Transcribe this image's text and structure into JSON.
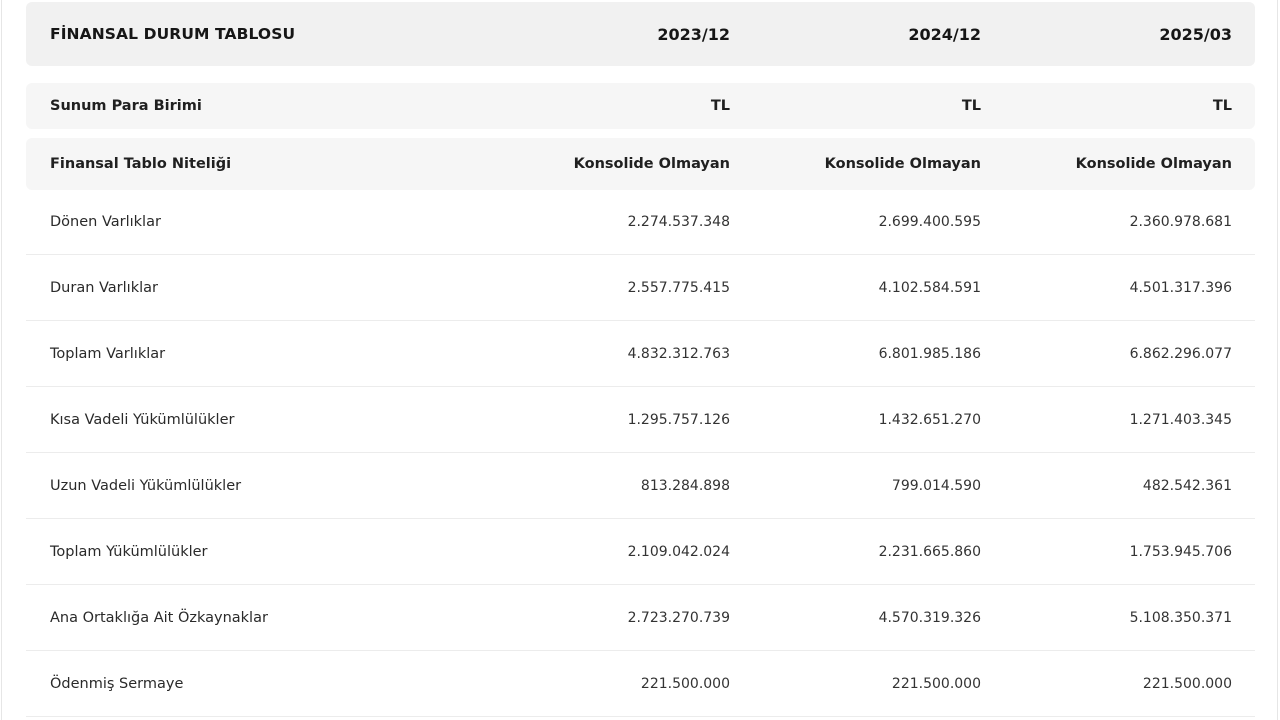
{
  "table": {
    "title": "FİNANSAL DURUM TABLOSU",
    "periods": [
      "2023/12",
      "2024/12",
      "2025/03"
    ],
    "meta_rows": [
      {
        "label": "Sunum Para Birimi",
        "values": [
          "TL",
          "TL",
          "TL"
        ]
      },
      {
        "label": "Finansal Tablo Niteliği",
        "values": [
          "Konsolide Olmayan",
          "Konsolide Olmayan",
          "Konsolide Olmayan"
        ]
      }
    ],
    "rows": [
      {
        "label": "Dönen Varlıklar",
        "values": [
          "2.274.537.348",
          "2.699.400.595",
          "2.360.978.681"
        ]
      },
      {
        "label": "Duran Varlıklar",
        "values": [
          "2.557.775.415",
          "4.102.584.591",
          "4.501.317.396"
        ]
      },
      {
        "label": "Toplam Varlıklar",
        "values": [
          "4.832.312.763",
          "6.801.985.186",
          "6.862.296.077"
        ]
      },
      {
        "label": "Kısa Vadeli Yükümlülükler",
        "values": [
          "1.295.757.126",
          "1.432.651.270",
          "1.271.403.345"
        ]
      },
      {
        "label": "Uzun Vadeli Yükümlülükler",
        "values": [
          "813.284.898",
          "799.014.590",
          "482.542.361"
        ]
      },
      {
        "label": "Toplam Yükümlülükler",
        "values": [
          "2.109.042.024",
          "2.231.665.860",
          "1.753.945.706"
        ]
      },
      {
        "label": "Ana Ortaklığa Ait Özkaynaklar",
        "values": [
          "2.723.270.739",
          "4.570.319.326",
          "5.108.350.371"
        ]
      },
      {
        "label": "Ödenmiş Sermaye",
        "values": [
          "221.500.000",
          "221.500.000",
          "221.500.000"
        ]
      }
    ]
  }
}
